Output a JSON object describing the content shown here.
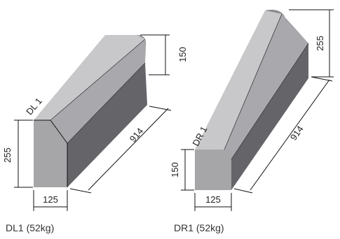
{
  "blocks": [
    {
      "id": "DL1",
      "label": "DL 1",
      "caption": "DL1 (52kg)",
      "dimensions": {
        "left_height": "255",
        "base_width": "125",
        "length": "914",
        "right_height": "150"
      }
    },
    {
      "id": "DR1",
      "label": "DR 1",
      "caption": "DR1 (52kg)",
      "dimensions": {
        "left_height": "150",
        "base_width": "125",
        "length": "914",
        "right_height": "255"
      }
    }
  ],
  "colors": {
    "top_face": "#c8c8ca",
    "front_face": "#a6a6a9",
    "side_face": "#646469",
    "dark_face": "#55555a",
    "outline": "#3a3a3e"
  }
}
